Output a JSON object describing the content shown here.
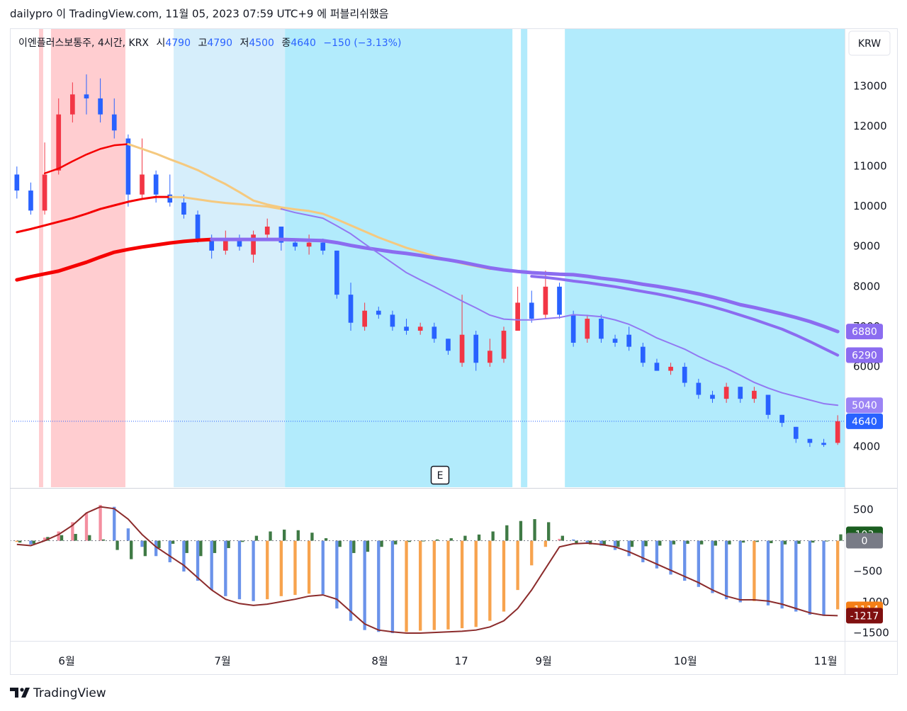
{
  "page": {
    "title": "dailypro 이 TradingView.com, 11월 05, 2023 07:59 UTC+9 에 퍼블리쉬했음",
    "currency": "KRW",
    "marker": "E",
    "brand": "TradingView"
  },
  "chart_data": [
    {
      "type": "candlestick",
      "legend": {
        "symbol": "이엔플러스보통주, 4시간, KRX",
        "open_label": "시",
        "open": 4790,
        "high_label": "고",
        "high": 4790,
        "low_label": "저",
        "low": 4500,
        "close_label": "종",
        "close": 4640,
        "change": "−150 (−3.13%)",
        "color": "#2962ff"
      },
      "up_color": "#f23645",
      "down_color": "#2962ff",
      "grid": false,
      "xlim": [
        -0.5,
        59.5
      ],
      "xticks": [
        {
          "value": 3.58,
          "label": "6월"
        },
        {
          "value": 14.78,
          "label": "7월"
        },
        {
          "value": 26.09,
          "label": "8월"
        },
        {
          "value": 31.95,
          "label": "17"
        },
        {
          "value": 37.86,
          "label": "9월"
        },
        {
          "value": 48.05,
          "label": "10월"
        },
        {
          "value": 58.13,
          "label": "11월"
        }
      ],
      "ylim": [
        2993,
        14450
      ],
      "yticks": [
        4000,
        5000,
        6000,
        7000,
        8000,
        9000,
        10000,
        11000,
        12000,
        13000
      ],
      "bands": [
        {
          "from": 1.59,
          "to": 1.89,
          "color": "#ffcdd0"
        },
        {
          "from": 2.45,
          "to": 7.8,
          "color": "#ffcdd0"
        },
        {
          "from": 11.27,
          "to": 19.27,
          "color": "#d6eefb"
        },
        {
          "from": 19.27,
          "to": 35.62,
          "color": "#b2ebfc"
        },
        {
          "from": 36.23,
          "to": 36.69,
          "color": "#b2ebfc"
        },
        {
          "from": 39.39,
          "to": 59.5,
          "color": "#b2ebfc"
        }
      ],
      "open": [
        10800,
        10400,
        9900,
        10900,
        12300,
        12800,
        12700,
        12300,
        11700,
        10300,
        10800,
        10300,
        10100,
        9800,
        9200,
        8900,
        9200,
        8800,
        9300,
        9500,
        9100,
        9000,
        9100,
        8900,
        7800,
        7000,
        7400,
        7300,
        7000,
        6900,
        7000,
        6700,
        6100,
        6800,
        6100,
        6200,
        6900,
        7600,
        7300,
        8000,
        7300,
        6700,
        7200,
        6700,
        6800,
        6500,
        6100,
        5900,
        6000,
        5600,
        5300,
        5200,
        5500,
        5200,
        5300,
        4800,
        4500,
        4200,
        4100,
        4100
      ],
      "high": [
        11000,
        10600,
        11600,
        12700,
        13100,
        13300,
        13200,
        12700,
        11800,
        11700,
        10900,
        10800,
        10300,
        9900,
        9300,
        9400,
        9300,
        9400,
        9700,
        9500,
        9200,
        9300,
        9200,
        8900,
        8100,
        7600,
        7500,
        7400,
        7200,
        7100,
        7100,
        6700,
        7800,
        6900,
        6700,
        7000,
        8000,
        7900,
        8400,
        8100,
        7400,
        7300,
        7300,
        6800,
        7000,
        6600,
        6200,
        6100,
        6100,
        5700,
        5400,
        5600,
        5500,
        5500,
        5300,
        4800,
        4500,
        4200,
        4200,
        4790
      ],
      "low": [
        10200,
        9800,
        9800,
        10800,
        12100,
        12300,
        12100,
        11700,
        10000,
        10200,
        10100,
        10000,
        9700,
        9100,
        8700,
        8800,
        8900,
        8600,
        9200,
        8900,
        8900,
        8800,
        8800,
        7700,
        6900,
        6900,
        7200,
        6900,
        6800,
        6800,
        6600,
        6300,
        6000,
        5900,
        6000,
        6100,
        6900,
        7100,
        7200,
        7200,
        6500,
        6600,
        6600,
        6500,
        6400,
        6000,
        5900,
        5800,
        5500,
        5200,
        5100,
        5100,
        5100,
        5100,
        4700,
        4500,
        4100,
        4000,
        4000,
        4050
      ],
      "close": [
        10400,
        9900,
        10800,
        12300,
        12800,
        12700,
        12300,
        11900,
        10300,
        10800,
        10300,
        10100,
        9800,
        9200,
        8900,
        9200,
        9000,
        9300,
        9500,
        9100,
        9000,
        9100,
        8900,
        7800,
        7100,
        7400,
        7300,
        7000,
        6900,
        7000,
        6700,
        6400,
        6800,
        6100,
        6400,
        6900,
        7600,
        7200,
        8000,
        7300,
        6600,
        7200,
        6700,
        6600,
        6500,
        6100,
        5900,
        6000,
        5600,
        5300,
        5200,
        5500,
        5200,
        5400,
        4800,
        4600,
        4200,
        4100,
        4050,
        4640
      ],
      "lines": [
        {
          "color": "#f50000",
          "width": 5,
          "values": [
            8170,
            8250,
            8320,
            8390,
            8500,
            8610,
            8740,
            8860,
            8930,
            8990,
            9040,
            9090,
            9130,
            9160,
            9180,
            null,
            null,
            null,
            null,
            null,
            null,
            null,
            null,
            null,
            null,
            null,
            null,
            null,
            null,
            null,
            null,
            null,
            null,
            null,
            null,
            null,
            null,
            null,
            null,
            null,
            null,
            null,
            null,
            null,
            null,
            null,
            null,
            null,
            null,
            null,
            null,
            null,
            null,
            null,
            null,
            null,
            null,
            null,
            null,
            null
          ]
        },
        {
          "color": "#f50000",
          "width": 3,
          "values": [
            9360,
            9440,
            9530,
            9620,
            9710,
            9820,
            9940,
            10030,
            10120,
            10190,
            10240,
            10240,
            null,
            null,
            null,
            null,
            null,
            null,
            null,
            null,
            null,
            null,
            null,
            null,
            null,
            null,
            null,
            null,
            null,
            null,
            null,
            null,
            null,
            null,
            null,
            null,
            null,
            null,
            null,
            null,
            null,
            null,
            null,
            null,
            null,
            null,
            null,
            null,
            null,
            null,
            null,
            null,
            null,
            null,
            null,
            null,
            null,
            null,
            null,
            null
          ]
        },
        {
          "color": "#f50000",
          "width": 2.5,
          "values": [
            null,
            null,
            10830,
            10950,
            11130,
            11300,
            11440,
            11530,
            11560,
            null,
            null,
            null,
            null,
            null,
            null,
            null,
            null,
            null,
            null,
            null,
            null,
            null,
            null,
            null,
            null,
            null,
            null,
            null,
            null,
            null,
            null,
            null,
            null,
            null,
            null,
            null,
            null,
            null,
            null,
            null,
            null,
            null,
            null,
            null,
            null,
            null,
            null,
            null,
            null,
            null,
            null,
            null,
            null,
            null,
            null,
            null,
            null,
            null,
            null,
            null
          ]
        },
        {
          "color": "#f5c97f",
          "width": 3,
          "values": [
            null,
            null,
            null,
            null,
            null,
            null,
            null,
            null,
            11560,
            11440,
            11320,
            11180,
            11050,
            10910,
            10730,
            10560,
            10360,
            10150,
            10050,
            9980,
            9930,
            9890,
            9820,
            9680,
            9530,
            9380,
            9230,
            9100,
            8970,
            8870,
            8760,
            8670,
            8580,
            8510,
            8440,
            null,
            null,
            null,
            null,
            null,
            null,
            null,
            null,
            null,
            null,
            null,
            null,
            null,
            null,
            null,
            null,
            null,
            null,
            null,
            null,
            null,
            null,
            null,
            null,
            null
          ]
        },
        {
          "color": "#f5c97f",
          "width": 3,
          "values": [
            null,
            null,
            null,
            null,
            null,
            null,
            null,
            null,
            null,
            null,
            null,
            10240,
            10230,
            10180,
            10130,
            10090,
            10060,
            10030,
            10000,
            9940,
            null,
            null,
            null,
            null,
            null,
            null,
            null,
            null,
            null,
            null,
            null,
            null,
            null,
            null,
            null,
            null,
            null,
            null,
            null,
            null,
            null,
            null,
            null,
            null,
            null,
            null,
            null,
            null,
            null,
            null,
            null,
            null,
            null,
            null,
            null,
            null,
            null,
            null,
            null,
            null
          ]
        },
        {
          "color": "#8b6cf0",
          "width": 5,
          "values": [
            null,
            null,
            null,
            null,
            null,
            null,
            null,
            null,
            null,
            null,
            null,
            null,
            null,
            null,
            9180,
            9180,
            9180,
            9180,
            9180,
            9180,
            9170,
            9160,
            9150,
            9100,
            9030,
            8970,
            8920,
            8870,
            8830,
            8780,
            8720,
            8670,
            8610,
            8540,
            8470,
            8420,
            8380,
            8350,
            8330,
            8310,
            8300,
            8260,
            8210,
            8170,
            8120,
            8060,
            8010,
            7950,
            7890,
            7820,
            7740,
            7650,
            7550,
            7480,
            7400,
            7320,
            7230,
            7130,
            7010,
            6880
          ]
        },
        {
          "color": "#8b6cf0",
          "width": 4,
          "values": [
            null,
            null,
            null,
            null,
            null,
            null,
            null,
            null,
            null,
            null,
            null,
            null,
            null,
            null,
            null,
            null,
            null,
            null,
            null,
            null,
            null,
            null,
            null,
            null,
            null,
            null,
            null,
            null,
            null,
            null,
            null,
            null,
            null,
            null,
            null,
            null,
            null,
            8260,
            8230,
            8190,
            8140,
            8100,
            8050,
            8000,
            7940,
            7880,
            7820,
            7750,
            7670,
            7590,
            7500,
            7400,
            7290,
            7180,
            7060,
            6940,
            6790,
            6630,
            6460,
            6290
          ]
        },
        {
          "color": "#9278f2",
          "width": 2,
          "values": [
            null,
            null,
            null,
            null,
            null,
            null,
            null,
            null,
            null,
            null,
            null,
            null,
            null,
            null,
            null,
            null,
            null,
            null,
            null,
            9940,
            9850,
            9780,
            9710,
            9520,
            9320,
            9070,
            8830,
            8590,
            8350,
            8170,
            8000,
            7820,
            7640,
            7470,
            7290,
            7190,
            7170,
            7170,
            7200,
            7230,
            7300,
            7280,
            7250,
            7170,
            7060,
            6900,
            6720,
            6580,
            6440,
            6260,
            6100,
            5960,
            5790,
            5610,
            5470,
            5350,
            5260,
            5170,
            5080,
            5040
          ]
        }
      ],
      "tag_colors": [
        "#8b6cf0",
        "#8b6cf0",
        "#9c84f5"
      ]
    },
    {
      "type": "macd",
      "ylim": [
        -1626,
        845
      ],
      "yticks": [
        500,
        0,
        {
          "value": -500,
          "label": "−500"
        },
        {
          "value": -1000,
          "label": "−1000"
        },
        {
          "value": -1500,
          "label": "−1500"
        }
      ],
      "histogram": [
        -20,
        -60,
        50,
        150,
        300,
        450,
        580,
        550,
        200,
        -100,
        -250,
        -350,
        -500,
        -650,
        -800,
        -900,
        -950,
        -980,
        -950,
        -900,
        -880,
        -860,
        -870,
        -1100,
        -1300,
        -1450,
        -1480,
        -1500,
        -1480,
        -1460,
        -1450,
        -1440,
        -1420,
        -1400,
        -1300,
        -1150,
        -800,
        -400,
        -100,
        30,
        20,
        -30,
        -80,
        -150,
        -250,
        -350,
        -450,
        -550,
        -650,
        -750,
        -850,
        -950,
        -1000,
        -980,
        -1050,
        -1100,
        -1150,
        -1200,
        -1220,
        -1114
      ],
      "histogram_colors": {
        "rising_positive": "#f48fa0",
        "falling": "#6b93ea",
        "rising_negative": "#f7a34e"
      },
      "histogram_tag_color": "#f57f17",
      "signal_histogram": [
        -30,
        -50,
        60,
        90,
        110,
        90,
        20,
        -150,
        -300,
        -250,
        -120,
        -50,
        -200,
        -250,
        -200,
        -120,
        -20,
        80,
        150,
        180,
        170,
        130,
        40,
        -100,
        -200,
        -180,
        -100,
        -60,
        -20,
        0,
        20,
        40,
        80,
        100,
        150,
        250,
        320,
        350,
        300,
        80,
        -40,
        -60,
        -80,
        -100,
        -100,
        -90,
        -80,
        -60,
        -50,
        -60,
        -80,
        -60,
        -30,
        -20,
        -40,
        -60,
        -50,
        -30,
        0,
        103
      ],
      "signal_histogram_color": "#3f7a45",
      "signal_tag_color": "#1b5e20",
      "line": [
        -60,
        -80,
        0,
        100,
        250,
        450,
        550,
        520,
        350,
        100,
        -100,
        -250,
        -400,
        -600,
        -800,
        -950,
        -1020,
        -1050,
        -1030,
        -990,
        -950,
        -900,
        -880,
        -950,
        -1150,
        -1350,
        -1450,
        -1480,
        -1500,
        -1500,
        -1490,
        -1480,
        -1470,
        -1450,
        -1400,
        -1300,
        -1100,
        -800,
        -450,
        -100,
        -50,
        -40,
        -60,
        -100,
        -180,
        -280,
        -380,
        -480,
        -580,
        -680,
        -800,
        -900,
        -960,
        -960,
        -980,
        -1030,
        -1100,
        -1170,
        -1210,
        -1217
      ],
      "line_color": "#8b2b2b",
      "line_tag_color": "#801010",
      "zero_color": "#787b86"
    }
  ]
}
